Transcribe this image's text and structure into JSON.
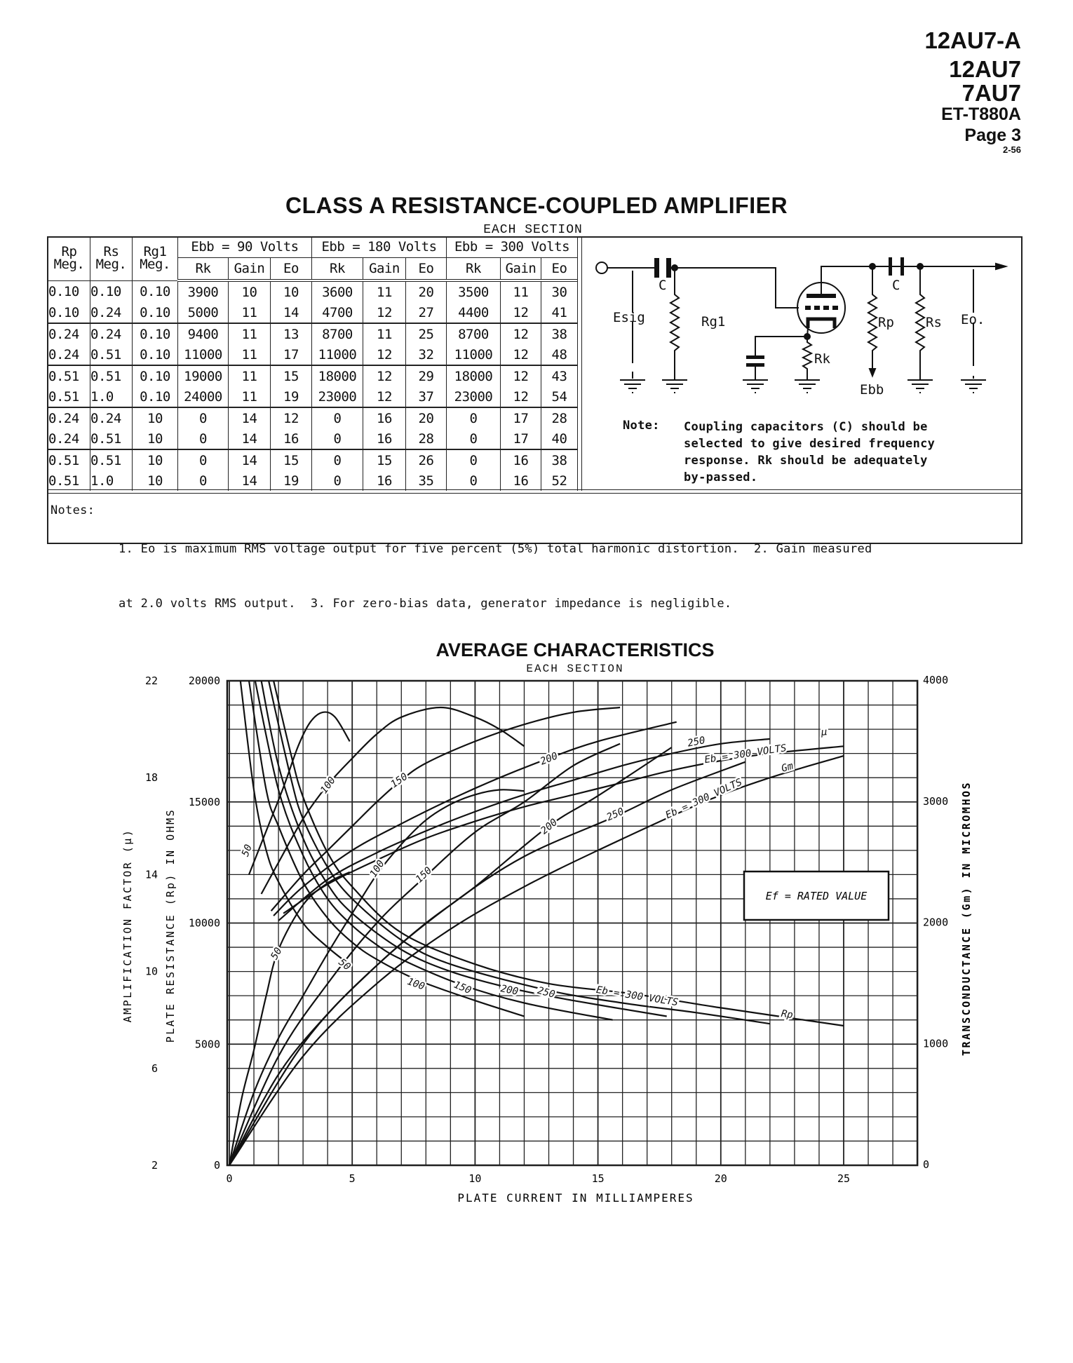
{
  "header": {
    "models": [
      "12AU7-A",
      "12AU7",
      "7AU7"
    ],
    "code": "ET-T880A",
    "page": "Page 3",
    "date": "2-56"
  },
  "amplifier": {
    "title": "CLASS A RESISTANCE-COUPLED AMPLIFIER",
    "subtitle": "EACH SECTION",
    "table": {
      "fixed_headers": [
        {
          "top": "Rp",
          "bottom": "Meg."
        },
        {
          "top": "Rs",
          "bottom": "Meg."
        },
        {
          "top": "Rg1",
          "bottom": "Meg."
        }
      ],
      "groups": [
        "Ebb = 90 Volts",
        "Ebb = 180 Volts",
        "Ebb = 300 Volts"
      ],
      "sub_headers": [
        "Rk",
        "Gain",
        "Eo"
      ],
      "rows": [
        [
          "0.10",
          "0.10",
          "0.10",
          "3900",
          "10",
          "10",
          "3600",
          "11",
          "20",
          "3500",
          "11",
          "30"
        ],
        [
          "0.10",
          "0.24",
          "0.10",
          "5000",
          "11",
          "14",
          "4700",
          "12",
          "27",
          "4400",
          "12",
          "41"
        ],
        [
          "0.24",
          "0.24",
          "0.10",
          "9400",
          "11",
          "13",
          "8700",
          "11",
          "25",
          "8700",
          "12",
          "38"
        ],
        [
          "0.24",
          "0.51",
          "0.10",
          "11000",
          "11",
          "17",
          "11000",
          "12",
          "32",
          "11000",
          "12",
          "48"
        ],
        [
          "0.51",
          "0.51",
          "0.10",
          "19000",
          "11",
          "15",
          "18000",
          "12",
          "29",
          "18000",
          "12",
          "43"
        ],
        [
          "0.51",
          "1.0",
          "0.10",
          "24000",
          "11",
          "19",
          "23000",
          "12",
          "37",
          "23000",
          "12",
          "54"
        ],
        [
          "0.24",
          "0.24",
          "10",
          "0",
          "14",
          "12",
          "0",
          "16",
          "20",
          "0",
          "17",
          "28"
        ],
        [
          "0.24",
          "0.51",
          "10",
          "0",
          "14",
          "16",
          "0",
          "16",
          "28",
          "0",
          "17",
          "40"
        ],
        [
          "0.51",
          "0.51",
          "10",
          "0",
          "14",
          "15",
          "0",
          "15",
          "26",
          "0",
          "16",
          "38"
        ],
        [
          "0.51",
          "1.0",
          "10",
          "0",
          "14",
          "19",
          "0",
          "16",
          "35",
          "0",
          "16",
          "52"
        ]
      ]
    },
    "circuit": {
      "labels": {
        "esig": "Esig",
        "c_in": "C",
        "rg1": "Rg1",
        "rk": "Rk",
        "rp": "Rp",
        "ebb": "Ebb",
        "c_out": "C",
        "rs": "Rs",
        "eo": "Eo."
      },
      "note_label": "Note:",
      "note_lines": [
        "Coupling capacitors (C) should be",
        "selected to give desired frequency",
        "response.  Rk should be adequately",
        "by-passed."
      ]
    },
    "notes_label": "Notes:",
    "notes_lines": [
      "1. Eo is maximum RMS voltage output for five percent (5%) total harmonic distortion.  2. Gain measured",
      "at 2.0 volts RMS output.  3. For zero-bias data, generator impedance is negligible."
    ]
  },
  "chart_data": {
    "type": "line",
    "title": "AVERAGE CHARACTERISTICS",
    "subtitle": "EACH SECTION",
    "xlabel": "PLATE CURRENT IN MILLIAMPERES",
    "xlim": [
      0,
      28
    ],
    "xticks": [
      "0",
      "5",
      "10",
      "15",
      "20",
      "25"
    ],
    "grid": true,
    "axes": {
      "mu": {
        "label": "AMPLIFICATION FACTOR (μ)",
        "range": [
          2,
          22
        ],
        "ticks": [
          "22",
          "18",
          "14",
          "10",
          "6",
          "2"
        ]
      },
      "rp": {
        "label": "PLATE RESISTANCE (Rp) IN OHMS",
        "range": [
          0,
          20000
        ],
        "ticks": [
          "20000",
          "15000",
          "10000",
          "5000",
          "0"
        ]
      },
      "gm": {
        "label": "TRANSCONDUCTANCE (Gm) IN MICROMHOS",
        "range": [
          0,
          4000
        ],
        "ticks": [
          "4000",
          "3000",
          "2000",
          "1000",
          "0"
        ]
      }
    },
    "box_label": "Ef = RATED VALUE",
    "series": [
      {
        "family": "mu",
        "eb": 50,
        "points": [
          [
            0.8,
            14.0
          ],
          [
            1.5,
            15.8
          ],
          [
            2.2,
            17.6
          ],
          [
            2.8,
            19.3
          ],
          [
            3.3,
            20.3
          ],
          [
            3.8,
            20.7
          ],
          [
            4.3,
            20.5
          ],
          [
            4.9,
            19.5
          ]
        ]
      },
      {
        "family": "mu",
        "eb": 100,
        "points": [
          [
            1.3,
            13.2
          ],
          [
            2,
            14.5
          ],
          [
            3,
            16.3
          ],
          [
            4,
            17.7
          ],
          [
            5,
            18.8
          ],
          [
            6,
            19.8
          ],
          [
            7,
            20.5
          ],
          [
            8.6,
            20.9
          ],
          [
            10,
            20.5
          ],
          [
            11,
            20.0
          ],
          [
            12,
            19.3
          ]
        ]
      },
      {
        "family": "mu",
        "eb": 150,
        "points": [
          [
            1.7,
            12.5
          ],
          [
            3,
            14.0
          ],
          [
            4,
            15.0
          ],
          [
            5,
            16.0
          ],
          [
            6,
            17.0
          ],
          [
            7,
            17.9
          ],
          [
            8,
            18.6
          ],
          [
            10,
            19.5
          ],
          [
            12,
            20.2
          ],
          [
            14,
            20.7
          ],
          [
            15.9,
            20.9
          ]
        ]
      },
      {
        "family": "mu",
        "eb": 200,
        "points": [
          [
            1.8,
            12.3
          ],
          [
            3,
            13.5
          ],
          [
            5,
            15.0
          ],
          [
            7,
            16.1
          ],
          [
            9,
            17.1
          ],
          [
            11,
            18.0
          ],
          [
            13,
            18.8
          ],
          [
            15,
            19.5
          ],
          [
            18.2,
            20.3
          ]
        ]
      },
      {
        "family": "mu",
        "eb": 250,
        "points": [
          [
            2.0,
            12.1
          ],
          [
            4,
            13.8
          ],
          [
            6,
            14.9
          ],
          [
            8,
            15.8
          ],
          [
            10,
            16.6
          ],
          [
            12,
            17.3
          ],
          [
            14,
            17.9
          ],
          [
            16,
            18.5
          ],
          [
            18,
            19.0
          ],
          [
            20,
            19.4
          ],
          [
            22,
            19.6
          ]
        ]
      },
      {
        "family": "mu",
        "eb": 300,
        "points": [
          [
            2.2,
            12.4
          ],
          [
            4,
            13.6
          ],
          [
            6,
            14.6
          ],
          [
            8,
            15.5
          ],
          [
            10,
            16.2
          ],
          [
            12,
            16.8
          ],
          [
            14,
            17.3
          ],
          [
            16,
            17.8
          ],
          [
            18,
            18.3
          ],
          [
            20,
            18.7
          ],
          [
            22,
            19.0
          ],
          [
            25,
            19.3
          ]
        ]
      },
      {
        "family": "gm",
        "eb": 50,
        "points": [
          [
            0,
            0
          ],
          [
            0.5,
            550
          ],
          [
            1,
            950
          ],
          [
            1.5,
            1400
          ],
          [
            2,
            1780
          ],
          [
            3,
            2150
          ],
          [
            4,
            2330
          ],
          [
            4.9,
            2420
          ]
        ]
      },
      {
        "family": "gm",
        "eb": 100,
        "points": [
          [
            0,
            0
          ],
          [
            1,
            600
          ],
          [
            2,
            1050
          ],
          [
            3,
            1400
          ],
          [
            4,
            1750
          ],
          [
            5,
            2080
          ],
          [
            6,
            2400
          ],
          [
            7,
            2650
          ],
          [
            8,
            2850
          ],
          [
            9,
            2980
          ],
          [
            10,
            3060
          ],
          [
            11,
            3100
          ],
          [
            12,
            3090
          ]
        ]
      },
      {
        "family": "gm",
        "eb": 150,
        "points": [
          [
            0,
            0
          ],
          [
            2,
            900
          ],
          [
            4,
            1500
          ],
          [
            6,
            2000
          ],
          [
            7.9,
            2370
          ],
          [
            10,
            2750
          ],
          [
            12,
            3000
          ],
          [
            14,
            3300
          ],
          [
            15.9,
            3480
          ]
        ]
      },
      {
        "family": "gm",
        "eb": 200,
        "points": [
          [
            0,
            0
          ],
          [
            2,
            750
          ],
          [
            4,
            1250
          ],
          [
            6,
            1650
          ],
          [
            8,
            2000
          ],
          [
            10,
            2300
          ],
          [
            13,
            2800
          ],
          [
            15,
            3050
          ],
          [
            18,
            3450
          ]
        ]
      },
      {
        "family": "gm",
        "eb": 250,
        "points": [
          [
            0,
            0
          ],
          [
            3,
            1000
          ],
          [
            6,
            1650
          ],
          [
            9,
            2150
          ],
          [
            12,
            2550
          ],
          [
            15.7,
            2880
          ],
          [
            18,
            3100
          ],
          [
            21,
            3330
          ]
        ]
      },
      {
        "family": "gm",
        "eb": 300,
        "points": [
          [
            0,
            0
          ],
          [
            3,
            900
          ],
          [
            6,
            1500
          ],
          [
            9,
            1950
          ],
          [
            12,
            2300
          ],
          [
            15,
            2600
          ],
          [
            19.2,
            2990
          ],
          [
            22,
            3200
          ],
          [
            25,
            3380
          ]
        ]
      },
      {
        "family": "rp",
        "eb": 50,
        "points": [
          [
            0.45,
            20000
          ],
          [
            1,
            15500
          ],
          [
            1.5,
            13000
          ],
          [
            2,
            11700
          ],
          [
            3,
            10000
          ],
          [
            4,
            9000
          ],
          [
            5,
            8200
          ]
        ]
      },
      {
        "family": "rp",
        "eb": 100,
        "points": [
          [
            0.8,
            20000
          ],
          [
            1.5,
            15500
          ],
          [
            2,
            14000
          ],
          [
            3,
            11700
          ],
          [
            4,
            10200
          ],
          [
            5,
            9200
          ],
          [
            6,
            8500
          ],
          [
            7.7,
            7630
          ],
          [
            10,
            6800
          ],
          [
            12,
            6150
          ]
        ]
      },
      {
        "family": "rp",
        "eb": 150,
        "points": [
          [
            1.05,
            20000
          ],
          [
            2,
            15500
          ],
          [
            3,
            12800
          ],
          [
            4,
            11000
          ],
          [
            5,
            9900
          ],
          [
            6,
            9100
          ],
          [
            7,
            8500
          ],
          [
            9.4,
            7470
          ],
          [
            12,
            6700
          ],
          [
            15.6,
            6000
          ]
        ]
      },
      {
        "family": "rp",
        "eb": 200,
        "points": [
          [
            1.3,
            20000
          ],
          [
            2,
            16500
          ],
          [
            3,
            13500
          ],
          [
            4,
            11600
          ],
          [
            5,
            10400
          ],
          [
            7,
            8900
          ],
          [
            9,
            8000
          ],
          [
            11.5,
            7300
          ],
          [
            14,
            6800
          ],
          [
            17.8,
            6150
          ]
        ]
      },
      {
        "family": "rp",
        "eb": 250,
        "points": [
          [
            1.6,
            20000
          ],
          [
            2.5,
            16000
          ],
          [
            3,
            14300
          ],
          [
            4,
            12300
          ],
          [
            5,
            11000
          ],
          [
            7,
            9300
          ],
          [
            9,
            8300
          ],
          [
            12.9,
            7240
          ],
          [
            16,
            6700
          ],
          [
            19,
            6300
          ],
          [
            22,
            5840
          ]
        ]
      },
      {
        "family": "rp",
        "eb": 300,
        "points": [
          [
            1.8,
            20000
          ],
          [
            2.5,
            17000
          ],
          [
            3,
            15200
          ],
          [
            4,
            12900
          ],
          [
            5,
            11500
          ],
          [
            7,
            9600
          ],
          [
            10,
            8300
          ],
          [
            13,
            7500
          ],
          [
            16.4,
            7080
          ],
          [
            20,
            6500
          ],
          [
            25,
            5760
          ]
        ]
      }
    ],
    "annotations": [
      {
        "family": "mu",
        "text": "50",
        "x": 0.7,
        "y": 15.0
      },
      {
        "family": "mu",
        "text": "100",
        "x": 4.0,
        "y": 17.7
      },
      {
        "family": "mu",
        "text": "150",
        "x": 6.9,
        "y": 17.9
      },
      {
        "family": "mu",
        "text": "200",
        "x": 13.0,
        "y": 18.8
      },
      {
        "family": "mu",
        "text": "250",
        "x": 19.0,
        "y": 19.5
      },
      {
        "family": "mu",
        "text": "Eb = 300 VOLTS",
        "x": 21.0,
        "y": 19.0
      },
      {
        "family": "mu",
        "text": "μ",
        "x": 24.2,
        "y": 19.9
      },
      {
        "family": "gm",
        "text": "50",
        "x": 1.9,
        "y": 1750
      },
      {
        "family": "gm",
        "text": "100",
        "x": 6.0,
        "y": 2450
      },
      {
        "family": "gm",
        "text": "150",
        "x": 7.9,
        "y": 2400
      },
      {
        "family": "gm",
        "text": "200",
        "x": 13.0,
        "y": 2800
      },
      {
        "family": "gm",
        "text": "250",
        "x": 15.7,
        "y": 2900
      },
      {
        "family": "gm",
        "text": "Eb = 300 VOLTS",
        "x": 19.3,
        "y": 3030
      },
      {
        "family": "gm",
        "text": "Gm",
        "x": 22.7,
        "y": 3290
      },
      {
        "family": "rp",
        "text": "50",
        "x": 4.7,
        "y": 8300
      },
      {
        "family": "rp",
        "text": "100",
        "x": 7.6,
        "y": 7500
      },
      {
        "family": "rp",
        "text": "150",
        "x": 9.5,
        "y": 7350
      },
      {
        "family": "rp",
        "text": "200",
        "x": 11.4,
        "y": 7250
      },
      {
        "family": "rp",
        "text": "250",
        "x": 12.9,
        "y": 7150
      },
      {
        "family": "rp",
        "text": "Eb = 300 VOLTS",
        "x": 16.6,
        "y": 7000
      },
      {
        "family": "rp",
        "text": "Rp",
        "x": 22.7,
        "y": 6250
      }
    ]
  }
}
